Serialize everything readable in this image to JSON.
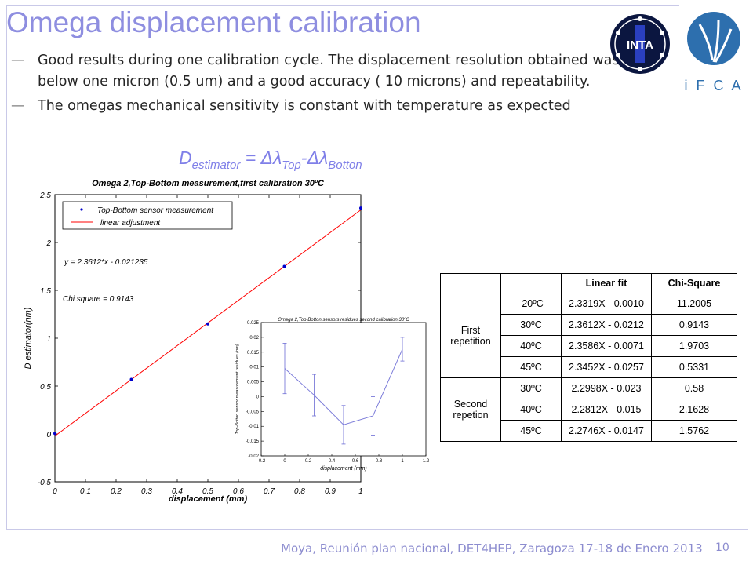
{
  "slide": {
    "title": "Omega displacement calibration",
    "bullets": [
      "Good results during one calibration cycle. The displacement resolution obtained was below one micron (0.5 um) and a good accuracy ( 10 microns) and repeatability.",
      "The omegas mechanical sensitivity is constant with temperature as expected"
    ],
    "bullet_marker": "—",
    "formula": {
      "lhs": "D",
      "lhs_sub": "estimator",
      "eq": " = ",
      "delta": "Δλ",
      "t1_sub": "Top",
      "minus": "-",
      "t2_sub": "Botton"
    },
    "logos": {
      "inta": "INTA",
      "ifca": "i F C A"
    },
    "footer": "Moya,  Reunión plan nacional, DET4HEP, Zaragoza 17-18 de Enero  2013",
    "page_number": "10",
    "colors": {
      "title": "#8e8ee0",
      "series_point": "#0000cc",
      "fit_line": "#ff0000",
      "inset_line": "#7b7bd9"
    }
  },
  "table": {
    "headers": [
      "",
      "",
      "Linear fit",
      "Chi-Square"
    ],
    "groups": [
      {
        "label": "First repetition",
        "rows": [
          {
            "temp": "-20ºC",
            "fit": "2.3319X - 0.0010",
            "chi": "11.2005"
          },
          {
            "temp": "30ºC",
            "fit": "2.3612X - 0.0212",
            "chi": "0.9143"
          },
          {
            "temp": "40ºC",
            "fit": "2.3586X - 0.0071",
            "chi": "1.9703"
          },
          {
            "temp": "45ºC",
            "fit": "2.3452X - 0.0257",
            "chi": "0.5331"
          }
        ]
      },
      {
        "label": "Second repetion",
        "rows": [
          {
            "temp": "30ºC",
            "fit": "2.2998X - 0.023",
            "chi": "0.58"
          },
          {
            "temp": "40ºC",
            "fit": "2.2812X - 0.015",
            "chi": "2.1628"
          },
          {
            "temp": "45ºC",
            "fit": "2.2746X - 0.0147",
            "chi": "1.5762"
          }
        ]
      }
    ]
  },
  "chart_data": [
    {
      "type": "scatter",
      "title": "Omega 2,Top-Bottom measurement,first calibration 30ºC",
      "xlabel": "displacement (mm)",
      "ylabel": "D estimator(nm)",
      "xlim": [
        0,
        1
      ],
      "ylim": [
        -0.5,
        2.5
      ],
      "xticks": [
        "0",
        "0.1",
        "0.2",
        "0.3",
        "0.4",
        "0.5",
        "0.6",
        "0.7",
        "0.8",
        "0.9",
        "1"
      ],
      "yticks": [
        "-0.5",
        "0",
        "0.5",
        "1",
        "1.5",
        "2",
        "2.5"
      ],
      "series": [
        {
          "name": "Top-Bottom sensor measurement",
          "x": [
            0,
            0.25,
            0.5,
            0.75,
            1
          ],
          "y": [
            0.005,
            0.57,
            1.15,
            1.75,
            2.36
          ]
        },
        {
          "name": "linear adjustment",
          "x": [
            0,
            1
          ],
          "y": [
            -0.021235,
            2.339965
          ]
        }
      ],
      "annotations": [
        "y = 2.3612*x - 0.021235",
        "Chi square = 0.9143"
      ],
      "legend": "top-left",
      "grid": false
    },
    {
      "type": "line",
      "title": "Omega 2,Top-Botton sensors residues second calibration 30ºC",
      "xlabel": "displacement (mm)",
      "ylabel": "Top-Botton sensor measurement residues (nm)",
      "xlim": [
        -0.2,
        1.2
      ],
      "ylim": [
        -0.02,
        0.025
      ],
      "xticks": [
        "-0.2",
        "0",
        "0.2",
        "0.4",
        "0.6",
        "0.8",
        "1",
        "1.2"
      ],
      "yticks": [
        "-0.02",
        "-0.015",
        "-0.01",
        "-0.005",
        "0",
        "0.005",
        "0.01",
        "0.015",
        "0.02",
        "0.025"
      ],
      "series": [
        {
          "x": [
            0,
            0.25,
            0.5,
            0.75,
            1
          ],
          "y": [
            0.0095,
            0.0005,
            -0.0095,
            -0.0065,
            0.016
          ],
          "err": [
            0.0085,
            0.007,
            0.0065,
            0.0065,
            0.004
          ]
        }
      ],
      "grid": false
    }
  ]
}
